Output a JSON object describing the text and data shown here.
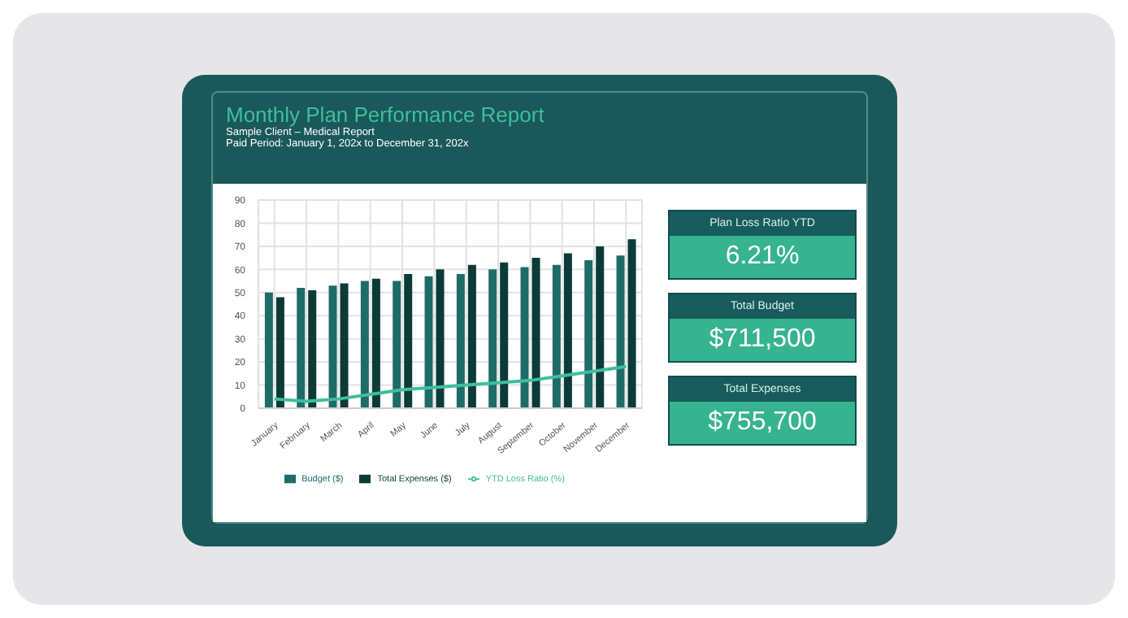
{
  "chart_data": [
    {
      "type": "bar",
      "title": "Monthly Plan Performance Report",
      "subtitle": "Sample Client – Medical Report",
      "annotations": [
        "Paid Period: January 1, 202x to December 31, 202x"
      ],
      "categories": [
        "January",
        "February",
        "March",
        "April",
        "May",
        "June",
        "July",
        "August",
        "September",
        "October",
        "November",
        "December"
      ],
      "series": [
        {
          "name": "Budget ($)",
          "color": "#1f6b68",
          "values": [
            50,
            52,
            53,
            55,
            55,
            57,
            58,
            60,
            61,
            62,
            64,
            66
          ]
        },
        {
          "name": "Total Expenses ($)",
          "color": "#0b3b36",
          "values": [
            48,
            51,
            54,
            56,
            58,
            60,
            62,
            63,
            65,
            67,
            70,
            73
          ]
        },
        {
          "name": "YTD Loss Ratio (%)",
          "type": "line",
          "color": "#3dbf9a",
          "values": [
            4,
            3,
            4,
            6,
            8,
            9,
            10,
            11,
            12,
            14,
            16,
            18
          ]
        }
      ],
      "ylim": [
        0,
        90
      ],
      "yticks": [
        0,
        10,
        20,
        30,
        40,
        50,
        60,
        70,
        80,
        90
      ],
      "grid": true,
      "legend": "bottom",
      "marker": "none"
    },
    {
      "type": "other",
      "annotations": [
        "Plan Loss Ratio YTD",
        "6.21%",
        "Total Budget",
        "$711,500",
        "Total Expenses",
        "$755,700"
      ]
    }
  ]
}
